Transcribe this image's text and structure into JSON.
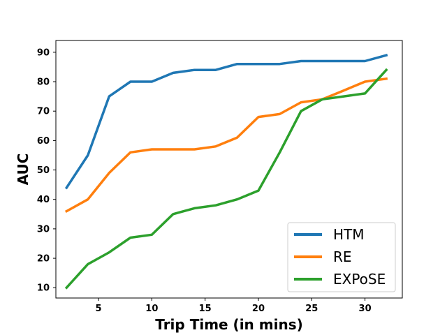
{
  "chart_data": {
    "type": "line",
    "title": "",
    "xlabel": "Trip Time (in mins)",
    "ylabel": "AUC",
    "xlim": [
      1,
      33.5
    ],
    "ylim": [
      6.5,
      94
    ],
    "xticks": [
      5,
      10,
      15,
      20,
      25,
      30
    ],
    "yticks": [
      10,
      20,
      30,
      40,
      50,
      60,
      70,
      80,
      90
    ],
    "grid": false,
    "legend_position": "lower-right",
    "x": [
      2,
      4,
      6,
      8,
      10,
      12,
      14,
      16,
      18,
      20,
      22,
      24,
      26,
      28,
      30,
      32
    ],
    "series": [
      {
        "name": "HTM",
        "color": "#1f77b4",
        "values": [
          44,
          55,
          75,
          80,
          80,
          83,
          84,
          84,
          86,
          86,
          86,
          87,
          87,
          87,
          87,
          89
        ]
      },
      {
        "name": "RE",
        "color": "#ff7f0e",
        "values": [
          36,
          40,
          49,
          56,
          57,
          57,
          57,
          58,
          61,
          68,
          69,
          73,
          74,
          77,
          80,
          81
        ]
      },
      {
        "name": "EXPoSE",
        "color": "#2ca02c",
        "values": [
          10,
          18,
          22,
          27,
          28,
          35,
          37,
          38,
          40,
          43,
          56,
          70,
          74,
          75,
          76,
          84
        ]
      }
    ]
  }
}
